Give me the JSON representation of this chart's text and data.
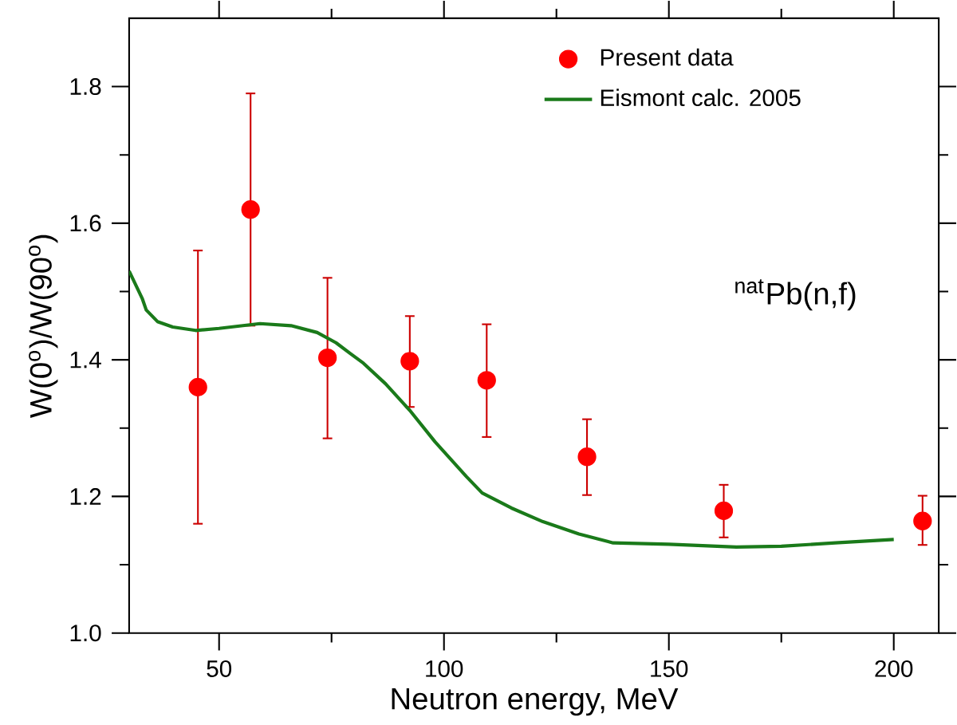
{
  "chart_data": {
    "type": "scatter",
    "xlabel": "Neutron energy, MeV",
    "ylabel": "W(0$^{o}$)/W(90$^{o}$)",
    "xlim": [
      30,
      210
    ],
    "ylim": [
      1.0,
      1.9
    ],
    "xticks": [
      50,
      100,
      150,
      200
    ],
    "yticks": [
      {
        "value": 1.0,
        "label": "1.0"
      },
      {
        "value": 1.2,
        "label": "1.2"
      },
      {
        "value": 1.4,
        "label": "1.4"
      },
      {
        "value": 1.6,
        "label": "1.6"
      },
      {
        "value": 1.8,
        "label": "1.8"
      }
    ],
    "legend": "top right",
    "grid": false,
    "annotations": [
      "$^{nat}$Pb(n,f)"
    ],
    "series": [
      {
        "name": "Present data",
        "marker": "circle",
        "color": "#ff0000",
        "x": [
          45.3,
          57.0,
          74.1,
          92.4,
          109.5,
          131.8,
          162.2,
          206.4
        ],
        "values": [
          1.36,
          1.62,
          1.403,
          1.398,
          1.37,
          1.258,
          1.179,
          1.164
        ],
        "errors": [
          [
            1.16,
            1.56
          ],
          [
            1.45,
            1.79
          ],
          [
            1.285,
            1.52
          ],
          [
            1.331,
            1.464
          ],
          [
            1.287,
            1.452
          ],
          [
            1.202,
            1.313
          ],
          [
            1.14,
            1.217
          ],
          [
            1.129,
            1.201
          ]
        ]
      },
      {
        "name": "Eismont calc. 2005",
        "type": "line",
        "marker": "none",
        "line_style": "solid",
        "color": "#1a7a1a",
        "x": [
          30,
          32.9,
          33.8,
          36.3,
          39.7,
          44.8,
          50,
          59.1,
          66,
          71.8,
          76,
          79.2,
          82.1,
          87,
          92.4,
          98,
          105,
          108.5,
          115,
          122,
          130,
          137.6,
          150,
          165,
          175,
          187,
          200
        ],
        "values": [
          1.53,
          1.49,
          1.473,
          1.456,
          1.448,
          1.443,
          1.446,
          1.453,
          1.45,
          1.44,
          1.425,
          1.409,
          1.395,
          1.365,
          1.326,
          1.28,
          1.229,
          1.205,
          1.183,
          1.163,
          1.145,
          1.132,
          1.13,
          1.126,
          1.127,
          1.132,
          1.137
        ]
      }
    ]
  }
}
